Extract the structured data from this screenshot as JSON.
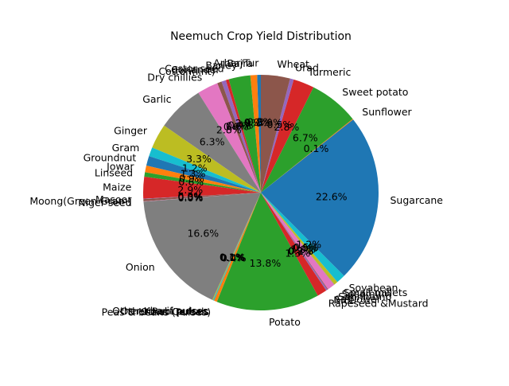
{
  "chart_data": {
    "type": "pie",
    "title": "Neemuch Crop Yield Distribution",
    "start_angle_deg": 90,
    "direction": "counterclockwise",
    "palette": [
      "#1f77b4",
      "#ff7f0e",
      "#2ca02c",
      "#d62728",
      "#9467bd",
      "#8c564b",
      "#e377c2",
      "#7f7f7f",
      "#bcbd22",
      "#17becf"
    ],
    "slices": [
      {
        "label": "Arhar/Tur",
        "value": 0.5,
        "pct_label": "0.5%"
      },
      {
        "label": "Bajra",
        "value": 0.9,
        "pct_label": "0.9%"
      },
      {
        "label": "Barley",
        "value": 2.9,
        "pct_label": "2.9%"
      },
      {
        "label": "Castor seed",
        "value": 0.4,
        "pct_label": "0.4%"
      },
      {
        "label": "Coriander",
        "value": 0.6,
        "pct_label": "0.6%"
      },
      {
        "label": "Cotton(lint)",
        "value": 0.6,
        "pct_label": "0.6%"
      },
      {
        "label": "Dry chillies",
        "value": 2.8,
        "pct_label": "2.8%"
      },
      {
        "label": "Garlic",
        "value": 6.3,
        "pct_label": "6.3%"
      },
      {
        "label": "Ginger",
        "value": 3.3,
        "pct_label": "3.3%"
      },
      {
        "label": "Gram",
        "value": 1.2,
        "pct_label": "1.2%"
      },
      {
        "label": "Groundnut",
        "value": 1.3,
        "pct_label": "1.3%"
      },
      {
        "label": "Jowar",
        "value": 0.9,
        "pct_label": "0.9%"
      },
      {
        "label": "Linseed",
        "value": 0.6,
        "pct_label": "0.6%"
      },
      {
        "label": "Maize",
        "value": 2.9,
        "pct_label": "2.9%"
      },
      {
        "label": "Masoor",
        "value": 0.05,
        "pct_label": "0.0%"
      },
      {
        "label": "Moong(Green Gram)",
        "value": 0.3,
        "pct_label": "0.3%"
      },
      {
        "label": "Niger seed",
        "value": 0.05,
        "pct_label": "0.0%"
      },
      {
        "label": "Onion",
        "value": 16.6,
        "pct_label": "16.6%"
      },
      {
        "label": "Other Kharif pulses",
        "value": 0.1,
        "pct_label": "0.1%"
      },
      {
        "label": "Other Rabi pulses",
        "value": 0.1,
        "pct_label": "0.1%"
      },
      {
        "label": "Other Cereals",
        "value": 0.05,
        "pct_label": "0.0%"
      },
      {
        "label": "Peas & beans (Pulses)",
        "value": 0.4,
        "pct_label": "0.4%"
      },
      {
        "label": "Potato",
        "value": 13.8,
        "pct_label": "13.8%"
      },
      {
        "label": "Rapeseed &Mustard",
        "value": 1.3,
        "pct_label": "1.3%"
      },
      {
        "label": "Rice",
        "value": 0.2,
        "pct_label": "0.2%"
      },
      {
        "label": "Safflower",
        "value": 0.1,
        "pct_label": "0.1%"
      },
      {
        "label": "Sannhamp",
        "value": 1.0,
        "pct_label": "1.0%"
      },
      {
        "label": "Sesamum",
        "value": 0.05,
        "pct_label": "0.0%"
      },
      {
        "label": "Small millets",
        "value": 0.5,
        "pct_label": "0.5%"
      },
      {
        "label": "Soyabean",
        "value": 1.2,
        "pct_label": "1.2%"
      },
      {
        "label": "Sugarcane",
        "value": 22.6,
        "pct_label": "22.6%"
      },
      {
        "label": "Sunflower",
        "value": 0.1,
        "pct_label": "0.1%"
      },
      {
        "label": "Sweet potato",
        "value": 6.7,
        "pct_label": "6.7%"
      },
      {
        "label": "Turmeric",
        "value": 2.8,
        "pct_label": "2.8%"
      },
      {
        "label": "Urad",
        "value": 0.5,
        "pct_label": "0.5%"
      },
      {
        "label": "Wheat",
        "value": 3.9,
        "pct_label": "3.9%"
      }
    ]
  }
}
